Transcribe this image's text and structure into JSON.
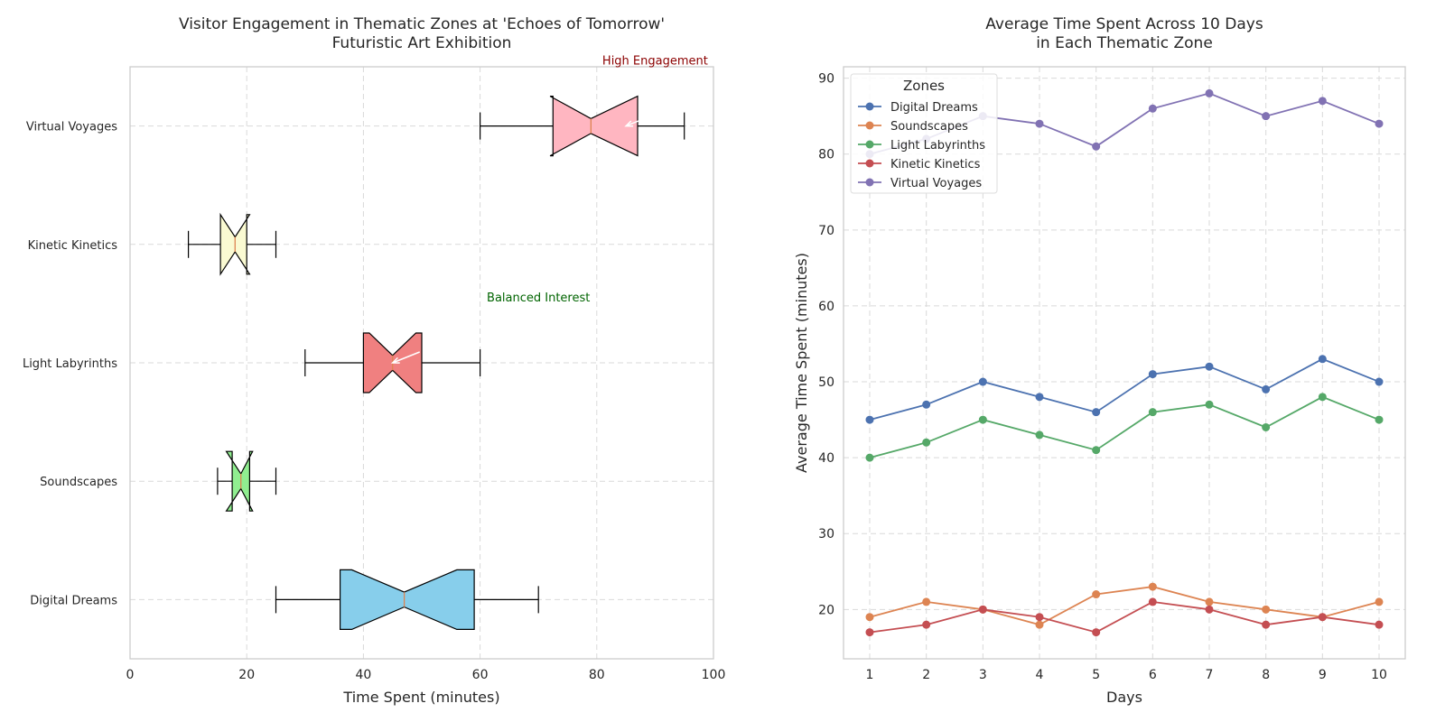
{
  "chart_data": [
    {
      "type": "box",
      "orientation": "horizontal",
      "notched": true,
      "title": "Visitor Engagement in Thematic Zones at 'Echoes of Tomorrow'\nFuturistic Art Exhibition",
      "xlabel": "Time Spent (minutes)",
      "ylabel": "",
      "xlim": [
        0,
        100
      ],
      "xticks": [
        0,
        20,
        40,
        60,
        80,
        100
      ],
      "grid": true,
      "categories": [
        "Digital Dreams",
        "Soundscapes",
        "Light Labyrinths",
        "Kinetic Kinetics",
        "Virtual Voyages"
      ],
      "boxes": [
        {
          "name": "Digital Dreams",
          "min": 25,
          "q1": 36,
          "median": 47,
          "q3": 59,
          "max": 70,
          "notch_low": 38,
          "notch_high": 56,
          "color": "#87ceeb"
        },
        {
          "name": "Soundscapes",
          "min": 15,
          "q1": 17.5,
          "median": 19,
          "q3": 20.5,
          "max": 25,
          "notch_low": 16.5,
          "notch_high": 21,
          "color": "#90ee90"
        },
        {
          "name": "Light Labyrinths",
          "min": 30,
          "q1": 40,
          "median": 45,
          "q3": 50,
          "max": 60,
          "notch_low": 41,
          "notch_high": 49,
          "color": "#f08080"
        },
        {
          "name": "Kinetic Kinetics",
          "min": 10,
          "q1": 15.5,
          "median": 18,
          "q3": 20,
          "max": 25,
          "notch_low": 15.5,
          "notch_high": 20.5,
          "color": "#fafad2"
        },
        {
          "name": "Virtual Voyages",
          "min": 60,
          "q1": 72.5,
          "median": 79,
          "q3": 87,
          "max": 95,
          "notch_low": 72,
          "notch_high": 87,
          "color": "#ffb6c1"
        }
      ],
      "annotations": [
        {
          "text": "High Engagement",
          "x": 90,
          "y_category": "Virtual Voyages",
          "y_offset": 0.55,
          "arrow_to_x": 85,
          "color": "#8b0000"
        },
        {
          "text": "Balanced Interest",
          "x": 70,
          "y_category": "Light Labyrinths",
          "y_offset": 0.55,
          "arrow_to_x": 45,
          "color": "#006400"
        }
      ]
    },
    {
      "type": "line",
      "title": "Average Time Spent Across 10 Days\nin Each Thematic Zone",
      "xlabel": "Days",
      "ylabel": "Average Time Spent (minutes)",
      "x": [
        1,
        2,
        3,
        4,
        5,
        6,
        7,
        8,
        9,
        10
      ],
      "ylim": [
        13.5,
        91.5
      ],
      "yticks": [
        20,
        30,
        40,
        50,
        60,
        70,
        80,
        90
      ],
      "grid": true,
      "legend": {
        "title": "Zones",
        "placement": "top-left"
      },
      "series": [
        {
          "name": "Digital Dreams",
          "color": "#4c72b0",
          "values": [
            45,
            47,
            50,
            48,
            46,
            51,
            52,
            49,
            53,
            50
          ]
        },
        {
          "name": "Soundscapes",
          "color": "#dd8452",
          "values": [
            19,
            21,
            20,
            18,
            22,
            23,
            21,
            20,
            19,
            21
          ]
        },
        {
          "name": "Light Labyrinths",
          "color": "#55a868",
          "values": [
            40,
            42,
            45,
            43,
            41,
            46,
            47,
            44,
            48,
            45
          ]
        },
        {
          "name": "Kinetic Kinetics",
          "color": "#c44e52",
          "values": [
            17,
            18,
            20,
            19,
            17,
            21,
            20,
            18,
            19,
            18
          ]
        },
        {
          "name": "Virtual Voyages",
          "color": "#8172b3",
          "values": [
            80,
            82,
            85,
            84,
            81,
            86,
            88,
            85,
            87,
            84
          ]
        }
      ]
    }
  ]
}
